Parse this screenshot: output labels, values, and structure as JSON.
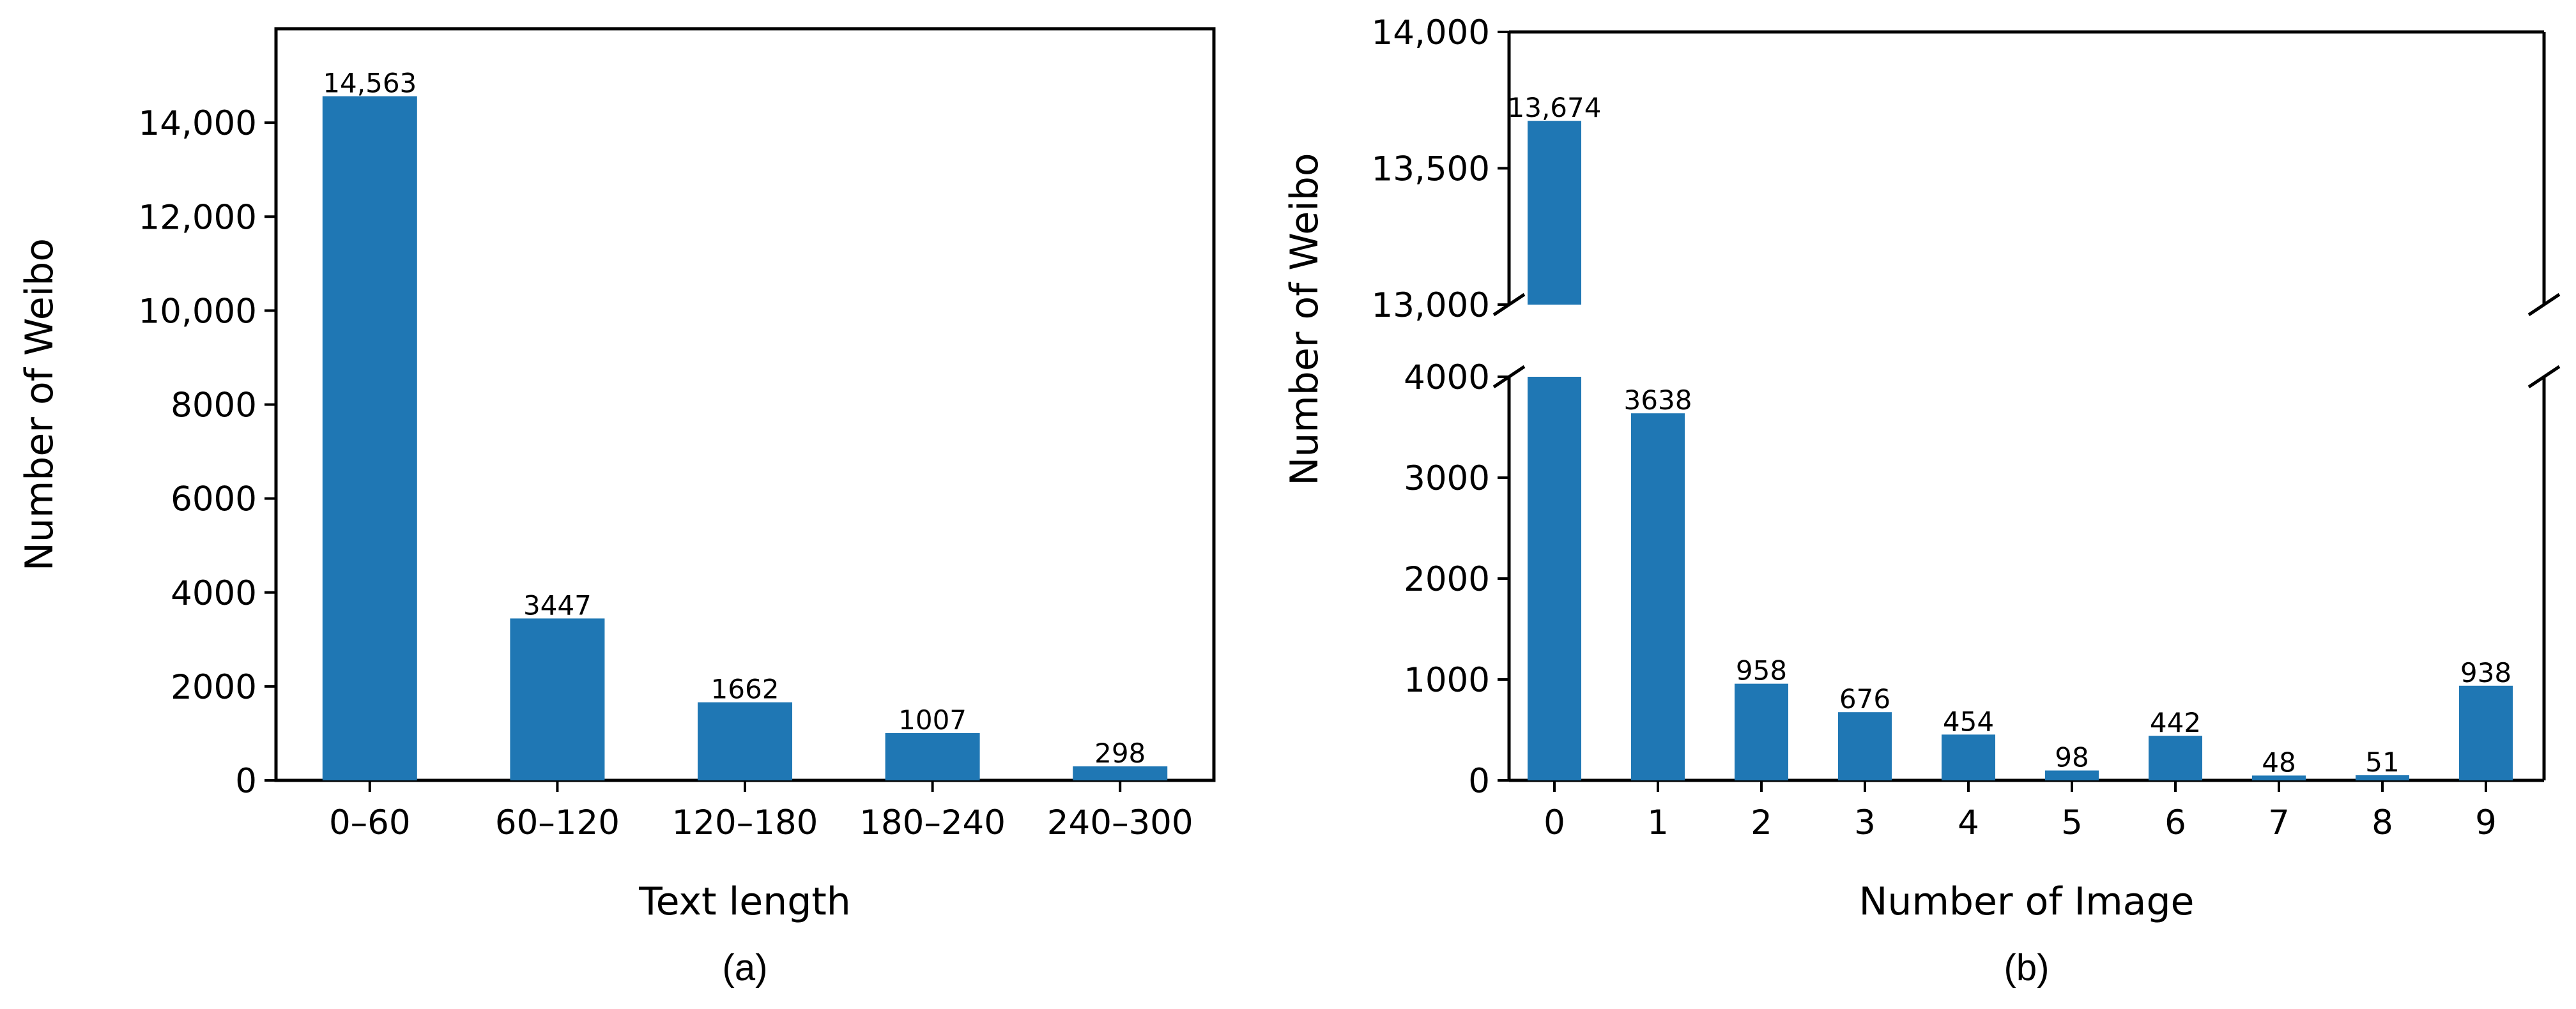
{
  "colors": {
    "bar": "#1f77b4",
    "axis": "#000000"
  },
  "chart_data": [
    {
      "type": "bar",
      "caption": "(a)",
      "xlabel": "Text length",
      "ylabel": "Number of Weibo",
      "categories": [
        "0–60",
        "60–120",
        "120–180",
        "180–240",
        "240–300"
      ],
      "values": [
        14563,
        3447,
        1662,
        1007,
        298
      ],
      "value_labels": [
        "14,563",
        "3447",
        "1662",
        "1007",
        "298"
      ],
      "ylim": [
        0,
        16000
      ],
      "yticks": [
        0,
        2000,
        4000,
        6000,
        8000,
        10000,
        12000,
        14000
      ],
      "ytick_labels": [
        "0",
        "2000",
        "4000",
        "6000",
        "8000",
        "10,000",
        "12,000",
        "14,000"
      ],
      "grid": false
    },
    {
      "type": "bar",
      "caption": "(b)",
      "xlabel": "Number of Image",
      "ylabel": "Number of Weibo",
      "broken_axis": true,
      "categories": [
        "0",
        "1",
        "2",
        "3",
        "4",
        "5",
        "6",
        "7",
        "8",
        "9"
      ],
      "values": [
        13674,
        3638,
        958,
        676,
        454,
        98,
        442,
        48,
        51,
        938
      ],
      "value_labels": [
        "13,674",
        "3638",
        "958",
        "676",
        "454",
        "98",
        "442",
        "48",
        "51",
        "938"
      ],
      "ylim_upper": [
        13000,
        14000
      ],
      "yticks_upper": [
        13000,
        13500,
        14000
      ],
      "ytick_labels_upper": [
        "13,000",
        "13,500",
        "14,000"
      ],
      "ylim_lower": [
        0,
        4000
      ],
      "yticks_lower": [
        0,
        1000,
        2000,
        3000,
        4000
      ],
      "ytick_labels_lower": [
        "0",
        "1000",
        "2000",
        "3000",
        "4000"
      ],
      "grid": false
    }
  ]
}
